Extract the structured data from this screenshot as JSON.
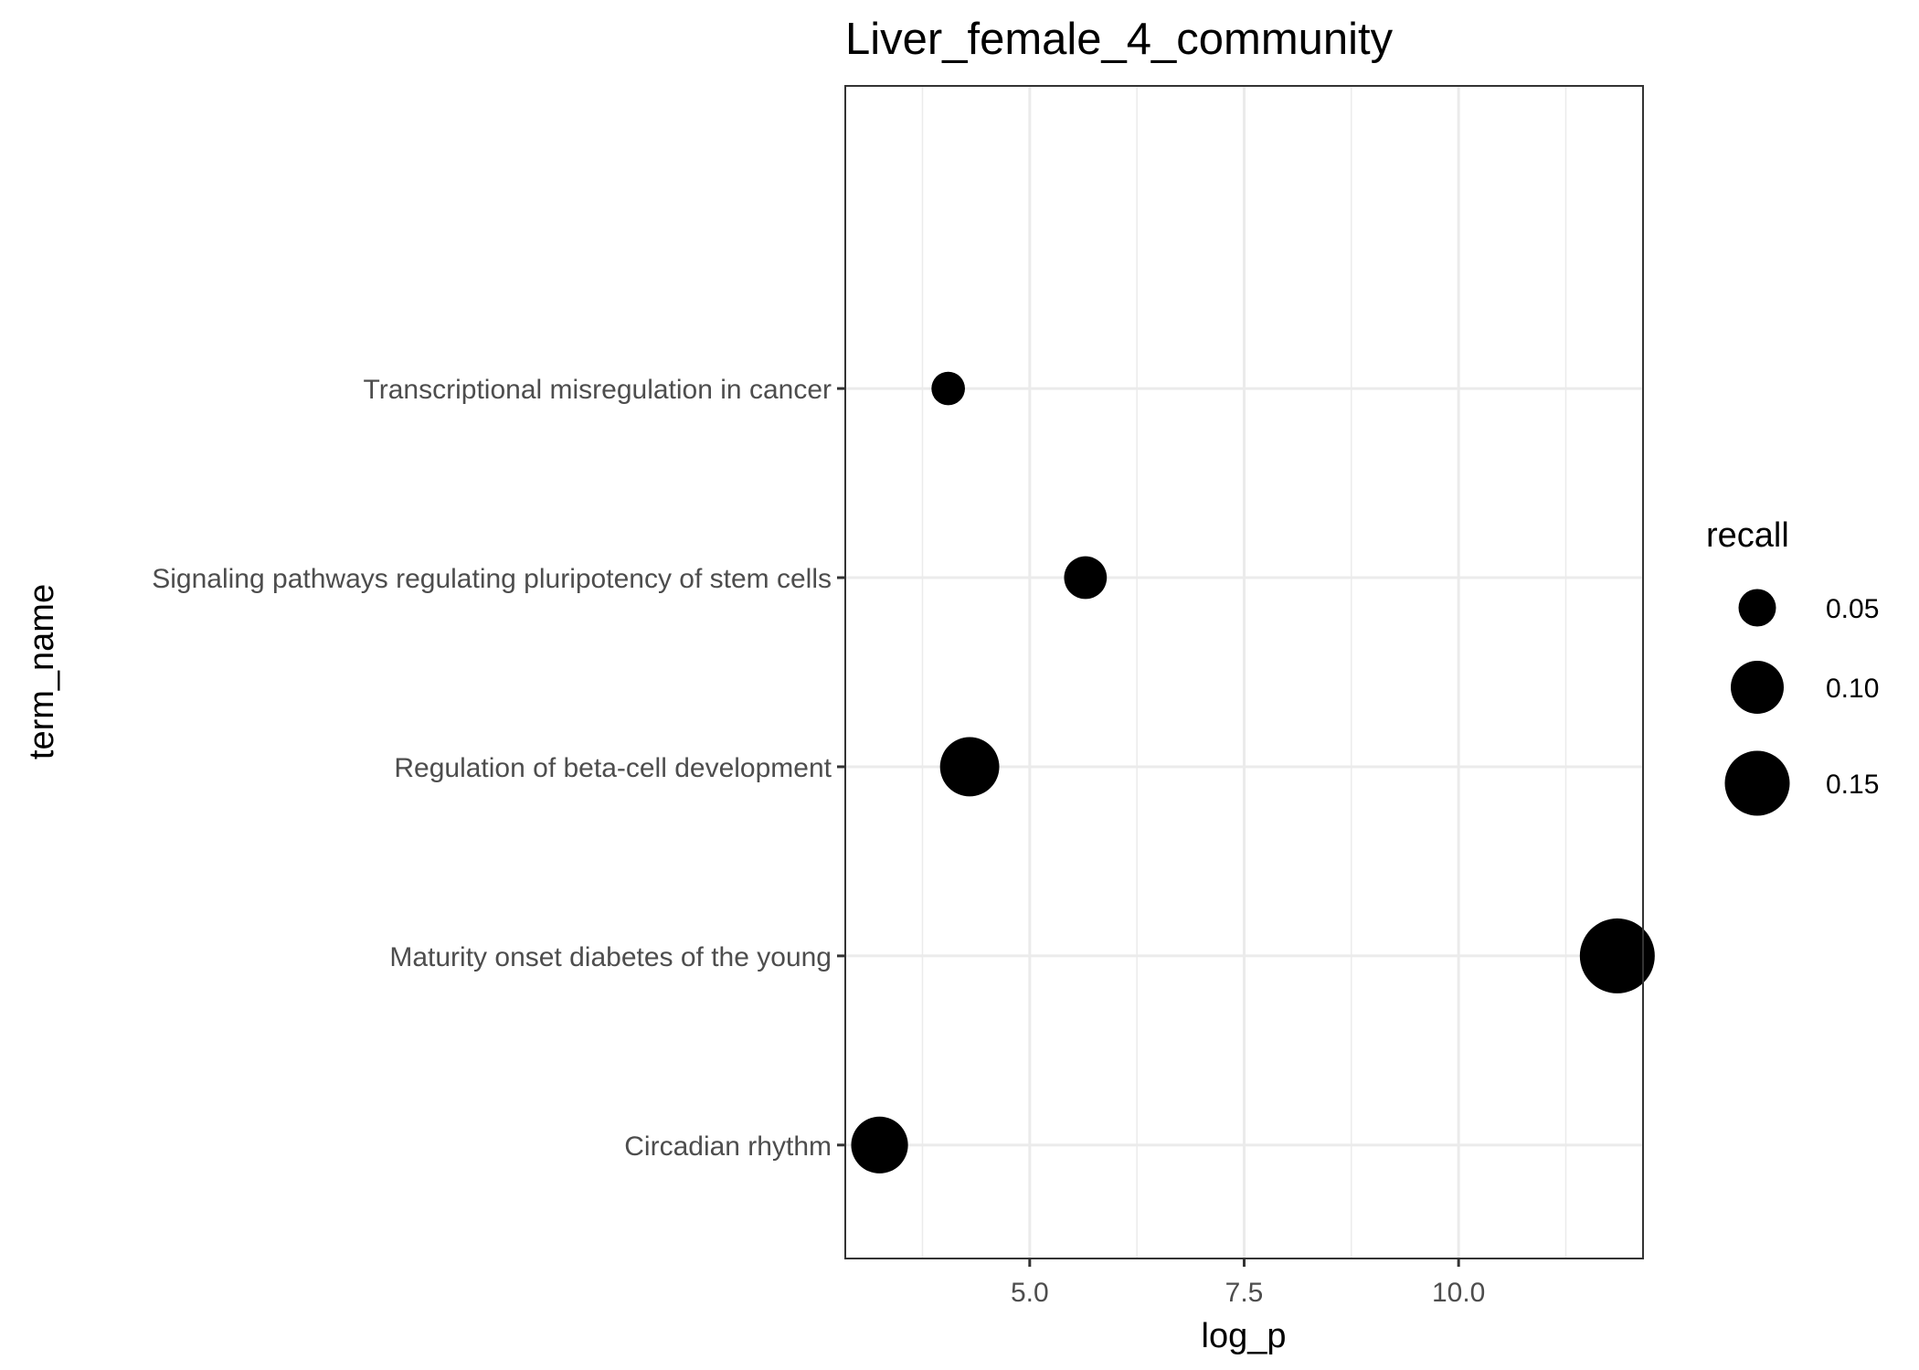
{
  "chart_data": {
    "type": "scatter",
    "title": "Liver_female_4_community",
    "xlabel": "log_p",
    "ylabel": "term_name",
    "xlim": [
      2.85,
      12.15
    ],
    "x_major_ticks": [
      5.0,
      7.5,
      10.0
    ],
    "x_tick_labels": [
      "5.0",
      "7.5",
      "10.0"
    ],
    "x_minor_ticks": [
      3.75,
      6.25,
      8.75,
      11.25
    ],
    "categories": [
      "Circadian rhythm",
      "Maturity onset diabetes of the young",
      "Regulation of beta-cell development",
      "Signaling pathways regulating pluripotency of stem cells",
      "Transcriptional misregulation in cancer"
    ],
    "points": [
      {
        "term_name": "Circadian rhythm",
        "log_p": 3.25,
        "recall": 0.115
      },
      {
        "term_name": "Maturity onset diabetes of the young",
        "log_p": 11.85,
        "recall": 0.2
      },
      {
        "term_name": "Regulation of beta-cell development",
        "log_p": 4.3,
        "recall": 0.125
      },
      {
        "term_name": "Signaling pathways regulating pluripotency of stem cells",
        "log_p": 5.65,
        "recall": 0.065
      },
      {
        "term_name": "Transcriptional misregulation in cancer",
        "log_p": 4.05,
        "recall": 0.04
      }
    ],
    "legend": {
      "title": "recall",
      "position": "right",
      "entries": [
        {
          "label": "0.05",
          "value": 0.05
        },
        {
          "label": "0.10",
          "value": 0.1
        },
        {
          "label": "0.15",
          "value": 0.15
        }
      ]
    },
    "grid": true,
    "point_color": "#000000",
    "grid_color": "#ebebeb",
    "panel_border_color": "#333333"
  }
}
